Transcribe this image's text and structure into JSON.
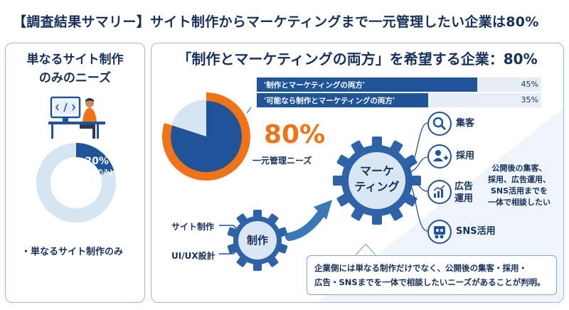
{
  "title": "【調査結果サマリー】サイト制作からマーケティングまで一元管理したい企業は80%",
  "left_panel": {
    "heading_line1": "単なるサイト制作",
    "heading_line2": "のみのニーズ",
    "donut_pct": "20%",
    "donut_sub": "(制作のみ)",
    "donut_value": 20,
    "note": "・単なるサイト制作のみ"
  },
  "right_panel": {
    "heading": "「制作とマーケティングの両方」を希望する企業：80%",
    "bars": [
      {
        "label": "'制作とマーケティングの両方'",
        "pct_text": "45%",
        "value": 45
      },
      {
        "label": "'可能なら制作とマーケティングの両方'",
        "pct_text": "35%",
        "value": 35
      }
    ],
    "pie_value": 80,
    "big_pct": "80%",
    "big_sub": "一元管理ニーズ",
    "gear_small_label": "制作",
    "gear_big_label_1": "マーケ",
    "gear_big_label_2": "ティング",
    "input_1": "サイト制作",
    "input_2": "UI/UX設計",
    "services": [
      {
        "label1": "集客",
        "label2": "",
        "icon": "search-icon"
      },
      {
        "label1": "採用",
        "label2": "",
        "icon": "person-add-icon"
      },
      {
        "label1": "広告",
        "label2": "運用",
        "icon": "chart-up-icon"
      },
      {
        "label1": "SNS活用",
        "label2": "",
        "icon": "sns-icon"
      }
    ],
    "side_note": [
      "公開後の集客、",
      "採用、広告運用、",
      "SNS活用までを",
      "一体で相談したい"
    ],
    "conclusion_1": "企業側には単なる制作だけでなく、公開後の集客・採用・",
    "conclusion_2": "広告・SNSまでを一体で相談したいニーズがあることが判明。"
  },
  "colors": {
    "navy": "#1f5498",
    "orange": "#f07417",
    "light": "#cfe0ef",
    "text": "#17305a"
  }
}
